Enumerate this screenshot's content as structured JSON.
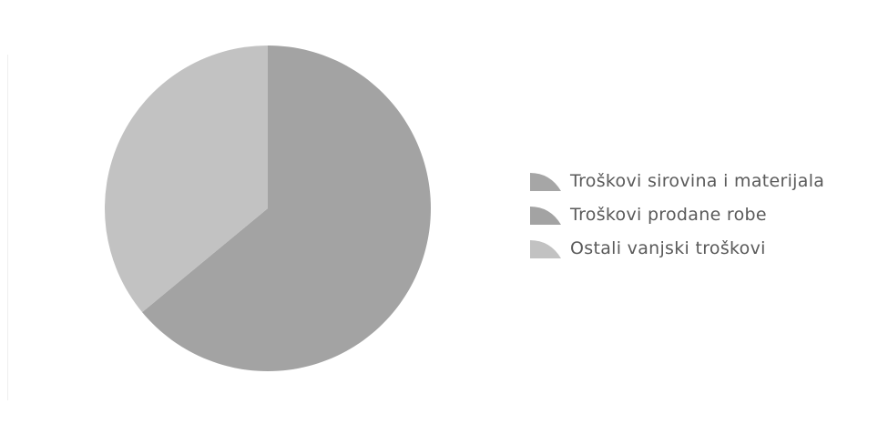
{
  "chart_data": {
    "type": "pie",
    "title": "",
    "slices": [
      {
        "label": "Troškovi sirovina i materijala",
        "value": 0,
        "color": "#a6a6a6"
      },
      {
        "label": "Troškovi prodane robe",
        "value": 64,
        "color": "#a3a3a3"
      },
      {
        "label": "Ostali vanjski troškovi",
        "value": 36,
        "color": "#c2c2c2"
      }
    ],
    "legend_position": "right"
  }
}
